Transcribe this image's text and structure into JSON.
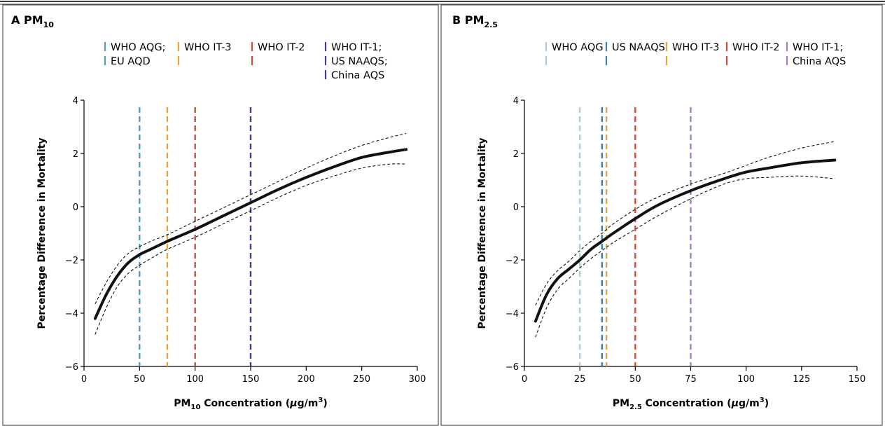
{
  "chart_data": [
    {
      "panel": "A",
      "pollutant_main": "PM",
      "pollutant_sub": "10",
      "type": "line",
      "xlabel_main": "PM",
      "xlabel_sub": "10",
      "xlabel_rest": " Concentration (",
      "xlabel_mu": "μ",
      "xlabel_unit": "g/m",
      "xlabel_sup": "3",
      "xlabel_close": ")",
      "ylabel": "Percentage Difference in Mortality",
      "xlim": [
        0,
        300
      ],
      "ylim": [
        -6,
        4
      ],
      "xticks": [
        "0",
        "50",
        "100",
        "150",
        "200",
        "250",
        "300"
      ],
      "yticks": [
        "−6",
        "−4",
        "−2",
        "0",
        "2",
        "4"
      ],
      "standards": [
        {
          "x": 50,
          "lines": [
            "WHO AQG;",
            "EU AQD"
          ],
          "color": "#5b9ab5"
        },
        {
          "x": 75,
          "lines": [
            "WHO IT-3"
          ],
          "color": "#e8a33b"
        },
        {
          "x": 100,
          "lines": [
            "WHO IT-2"
          ],
          "color": "#c9503a"
        },
        {
          "x": 150,
          "lines": [
            "WHO IT-1;",
            "US NAAQS;",
            "China AQS"
          ],
          "color": "#4b3a8c"
        }
      ],
      "series": [
        {
          "role": "estimate",
          "x": [
            10,
            20,
            30,
            40,
            50,
            60,
            75,
            100,
            125,
            150,
            175,
            200,
            225,
            250,
            275,
            290
          ],
          "y": [
            -4.2,
            -3.3,
            -2.6,
            -2.1,
            -1.8,
            -1.6,
            -1.3,
            -0.85,
            -0.35,
            0.15,
            0.65,
            1.1,
            1.5,
            1.85,
            2.05,
            2.15
          ]
        },
        {
          "role": "upper-ci",
          "x": [
            10,
            20,
            30,
            40,
            50,
            60,
            75,
            100,
            125,
            150,
            175,
            200,
            225,
            250,
            275,
            290
          ],
          "y": [
            -3.65,
            -2.85,
            -2.2,
            -1.75,
            -1.5,
            -1.3,
            -1.05,
            -0.55,
            -0.05,
            0.45,
            0.95,
            1.45,
            1.9,
            2.3,
            2.6,
            2.75
          ]
        },
        {
          "role": "lower-ci",
          "x": [
            10,
            20,
            30,
            40,
            50,
            60,
            75,
            100,
            125,
            150,
            175,
            200,
            225,
            250,
            275,
            290
          ],
          "y": [
            -4.8,
            -3.8,
            -3.0,
            -2.5,
            -2.2,
            -1.95,
            -1.6,
            -1.15,
            -0.65,
            -0.15,
            0.35,
            0.8,
            1.15,
            1.45,
            1.6,
            1.6
          ]
        }
      ]
    },
    {
      "panel": "B",
      "pollutant_main": "PM",
      "pollutant_sub": "2.5",
      "type": "line",
      "xlabel_main": "PM",
      "xlabel_sub": "2.5",
      "xlabel_rest": " Concentration (",
      "xlabel_mu": "μ",
      "xlabel_unit": "g/m",
      "xlabel_sup": "3",
      "xlabel_close": ")",
      "ylabel": "Percentage Difference in Mortality",
      "xlim": [
        0,
        150
      ],
      "ylim": [
        -6,
        4
      ],
      "xticks": [
        "0",
        "25",
        "50",
        "75",
        "100",
        "125",
        "150"
      ],
      "yticks": [
        "−6",
        "−4",
        "−2",
        "0",
        "2",
        "4"
      ],
      "standards": [
        {
          "x": 25,
          "lines": [
            "WHO AQG"
          ],
          "color": "#a6cddc"
        },
        {
          "x": 35,
          "lines": [
            "US NAAQS"
          ],
          "color": "#3b7fb0"
        },
        {
          "x": 37,
          "lines": [
            "WHO IT-3"
          ],
          "color": "#e8a33b"
        },
        {
          "x": 50,
          "lines": [
            "WHO IT-2"
          ],
          "color": "#c9503a"
        },
        {
          "x": 75,
          "lines": [
            "WHO IT-1;",
            "China AQS"
          ],
          "color": "#a67dc0"
        }
      ],
      "series": [
        {
          "role": "estimate",
          "x": [
            5,
            10,
            15,
            20,
            25,
            30,
            35,
            40,
            50,
            60,
            75,
            90,
            100,
            110,
            125,
            140
          ],
          "y": [
            -4.3,
            -3.3,
            -2.7,
            -2.35,
            -2.0,
            -1.6,
            -1.3,
            -1.0,
            -0.45,
            0.05,
            0.6,
            1.05,
            1.3,
            1.45,
            1.65,
            1.75
          ]
        },
        {
          "role": "upper-ci",
          "x": [
            5,
            10,
            15,
            20,
            25,
            30,
            35,
            40,
            50,
            60,
            75,
            90,
            100,
            110,
            125,
            140
          ],
          "y": [
            -3.7,
            -2.9,
            -2.4,
            -2.05,
            -1.65,
            -1.3,
            -1.0,
            -0.65,
            -0.1,
            0.35,
            0.85,
            1.25,
            1.55,
            1.85,
            2.2,
            2.45
          ]
        },
        {
          "role": "lower-ci",
          "x": [
            5,
            10,
            15,
            20,
            25,
            30,
            35,
            40,
            50,
            60,
            75,
            90,
            100,
            110,
            125,
            140
          ],
          "y": [
            -4.9,
            -3.8,
            -3.1,
            -2.7,
            -2.3,
            -1.95,
            -1.65,
            -1.35,
            -0.85,
            -0.35,
            0.3,
            0.85,
            1.05,
            1.1,
            1.15,
            1.05
          ]
        }
      ]
    }
  ]
}
